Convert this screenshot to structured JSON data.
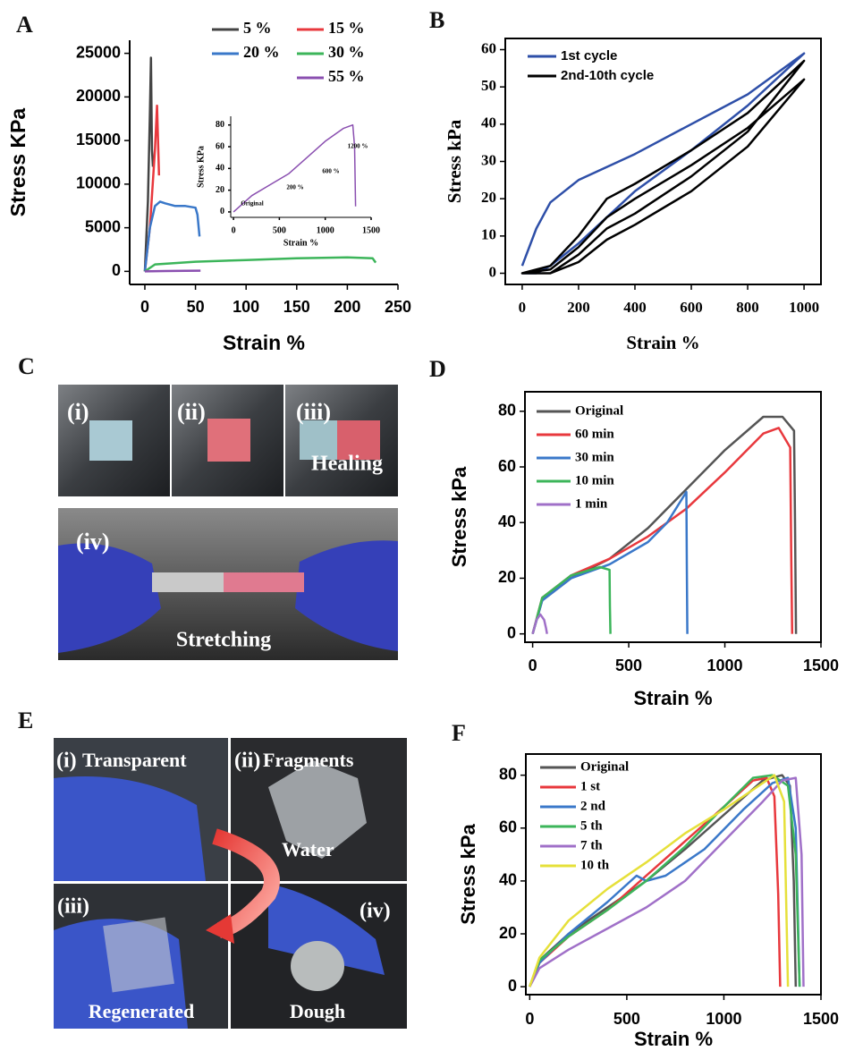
{
  "panel_labels": [
    "A",
    "B",
    "C",
    "D",
    "E",
    "F"
  ],
  "figure_c": {
    "labels": [
      "(i)",
      "(ii)",
      "(iii)",
      "Healing",
      "(iv)",
      "Stretching"
    ]
  },
  "figure_e": {
    "labels": [
      "(i)",
      "Transparent",
      "(ii)",
      "Fragments",
      "Water",
      "(iii)",
      "Regenerated",
      "(iv)",
      "Dough"
    ]
  },
  "chart_data": [
    {
      "type": "line",
      "x_label": "Strain %",
      "y_label": "Stress KPa",
      "xlim": [
        -15,
        250
      ],
      "xticks": [
        0,
        50,
        100,
        150,
        200,
        250
      ],
      "ylim": [
        -1500,
        26500
      ],
      "yticks": [
        0,
        5000,
        10000,
        15000,
        20000,
        25000
      ],
      "series": [
        {
          "name": "5 %",
          "color": "#444444",
          "x": [
            0,
            3,
            5,
            6,
            7,
            8
          ],
          "values": [
            0,
            8000,
            18000,
            24500,
            14000,
            12000
          ]
        },
        {
          "name": "15 %",
          "color": "#e8383d",
          "x": [
            0,
            5,
            10,
            12,
            13,
            14
          ],
          "values": [
            0,
            5000,
            14000,
            19000,
            15000,
            11000
          ]
        },
        {
          "name": "20 %",
          "color": "#3a78c9",
          "x": [
            0,
            5,
            10,
            15,
            20,
            30,
            40,
            50,
            52,
            54
          ],
          "values": [
            0,
            5000,
            7500,
            8000,
            7800,
            7500,
            7500,
            7300,
            6500,
            4000
          ]
        },
        {
          "name": "30 %",
          "color": "#3cb55a",
          "x": [
            0,
            10,
            50,
            100,
            150,
            200,
            225,
            228
          ],
          "values": [
            0,
            800,
            1100,
            1300,
            1500,
            1600,
            1500,
            1000
          ]
        },
        {
          "name": "55 %",
          "color": "#8a4fb0",
          "x": [
            0,
            20,
            40,
            55
          ],
          "values": [
            0,
            40,
            70,
            80
          ]
        }
      ]
    },
    {
      "type": "line",
      "x_label": "Strain %",
      "y_label": "Stress KPa",
      "xlim": [
        -30,
        1500
      ],
      "xticks": [
        0,
        500,
        1000,
        1500
      ],
      "ylim": [
        -5,
        88
      ],
      "yticks": [
        0,
        20,
        40,
        60,
        80
      ],
      "annotations": [
        "Original",
        "200 %",
        "600 %",
        "1200 %"
      ],
      "series": [
        {
          "color": "#8a4fb0",
          "x": [
            0,
            200,
            400,
            600,
            800,
            1000,
            1200,
            1300,
            1320,
            1330
          ],
          "values": [
            0,
            15,
            25,
            35,
            50,
            65,
            77,
            80,
            60,
            5
          ]
        }
      ]
    },
    {
      "type": "line",
      "x_label": "Strain %",
      "y_label": "Stress kPa",
      "xlim": [
        -60,
        1060
      ],
      "xticks": [
        0,
        200,
        400,
        600,
        800,
        1000
      ],
      "ylim": [
        -3,
        63
      ],
      "yticks": [
        0,
        10,
        20,
        30,
        40,
        50,
        60
      ],
      "series": [
        {
          "name": "1st cycle",
          "color": "#2e4fa8",
          "x": [
            0,
            50,
            100,
            200,
            400,
            600,
            800,
            1000,
            800,
            600,
            400,
            200,
            100,
            50,
            0
          ],
          "values": [
            2,
            12,
            19,
            25,
            32,
            40,
            48,
            59,
            45,
            33,
            22,
            8,
            2,
            0,
            0
          ]
        },
        {
          "name": "2nd-10th cycle",
          "color": "#000000",
          "x": [
            0,
            100,
            200,
            300,
            400,
            600,
            800,
            1000,
            800,
            600,
            400,
            300,
            200,
            100,
            0,
            100,
            200,
            300,
            400,
            600,
            800,
            1000,
            800,
            600,
            400,
            300,
            200,
            100,
            0
          ],
          "values": [
            0,
            2,
            10,
            20,
            24,
            33,
            43,
            57,
            38,
            26,
            16,
            12,
            5,
            0,
            0,
            1,
            7,
            15,
            20,
            29,
            39,
            52,
            34,
            22,
            13,
            9,
            3,
            0,
            0
          ]
        }
      ]
    },
    {
      "type": "line",
      "x_label": "Strain %",
      "y_label": "Stress kPa",
      "xlim": [
        -40,
        1500
      ],
      "xticks": [
        0,
        500,
        1000,
        1500
      ],
      "ylim": [
        -3,
        87
      ],
      "yticks": [
        0,
        20,
        40,
        60,
        80
      ],
      "series": [
        {
          "name": "Original",
          "color": "#555555",
          "x": [
            0,
            50,
            200,
            400,
            600,
            800,
            1000,
            1200,
            1300,
            1360,
            1365,
            1370
          ],
          "values": [
            0,
            12,
            20,
            27,
            38,
            52,
            66,
            78,
            78,
            73,
            40,
            0
          ]
        },
        {
          "name": "60 min",
          "color": "#e8383d",
          "x": [
            0,
            50,
            200,
            400,
            600,
            800,
            1000,
            1200,
            1280,
            1340,
            1345,
            1350
          ],
          "values": [
            0,
            13,
            21,
            27,
            35,
            45,
            58,
            72,
            74,
            67,
            30,
            0
          ]
        },
        {
          "name": "30 min",
          "color": "#3a78c9",
          "x": [
            0,
            50,
            200,
            400,
            600,
            700,
            800,
            802,
            805
          ],
          "values": [
            0,
            12,
            20,
            25,
            33,
            40,
            51,
            25,
            0
          ]
        },
        {
          "name": "10 min",
          "color": "#3cb55a",
          "x": [
            0,
            50,
            200,
            350,
            400,
            402,
            405
          ],
          "values": [
            0,
            13,
            21,
            24,
            23,
            10,
            0
          ]
        },
        {
          "name": "1 min",
          "color": "#a070c8",
          "x": [
            0,
            20,
            40,
            60,
            70,
            75
          ],
          "values": [
            0,
            5,
            7,
            5,
            2,
            0
          ]
        }
      ]
    },
    {
      "type": "line",
      "x_label": "Strain %",
      "y_label": "Stress kPa",
      "xlim": [
        -20,
        1500
      ],
      "xticks": [
        0,
        500,
        1000,
        1500
      ],
      "ylim": [
        -3,
        88
      ],
      "yticks": [
        0,
        20,
        40,
        60,
        80
      ],
      "series": [
        {
          "name": "Original",
          "color": "#555555",
          "x": [
            0,
            50,
            200,
            400,
            600,
            800,
            1000,
            1200,
            1300,
            1340,
            1360,
            1370
          ],
          "values": [
            0,
            10,
            20,
            30,
            40,
            52,
            65,
            78,
            80,
            76,
            40,
            0
          ]
        },
        {
          "name": "1 st",
          "color": "#e8383d",
          "x": [
            0,
            50,
            200,
            400,
            600,
            800,
            1000,
            1150,
            1220,
            1260,
            1280,
            1290
          ],
          "values": [
            0,
            9,
            19,
            29,
            42,
            55,
            68,
            78,
            79,
            72,
            35,
            0
          ]
        },
        {
          "name": "2 nd",
          "color": "#3a78c9",
          "x": [
            0,
            50,
            200,
            400,
            550,
            600,
            700,
            900,
            1100,
            1250,
            1330,
            1370,
            1390
          ],
          "values": [
            0,
            9,
            20,
            32,
            42,
            40,
            42,
            52,
            67,
            77,
            79,
            60,
            0
          ]
        },
        {
          "name": "5 th",
          "color": "#3cb55a",
          "x": [
            0,
            50,
            200,
            400,
            600,
            800,
            1000,
            1150,
            1250,
            1330,
            1370,
            1390
          ],
          "values": [
            0,
            10,
            19,
            29,
            40,
            53,
            68,
            79,
            80,
            76,
            50,
            0
          ]
        },
        {
          "name": "7 th",
          "color": "#a070c8",
          "x": [
            0,
            50,
            200,
            400,
            600,
            800,
            1000,
            1200,
            1300,
            1370,
            1400,
            1410
          ],
          "values": [
            0,
            7,
            14,
            22,
            30,
            40,
            55,
            70,
            78,
            79,
            50,
            0
          ]
        },
        {
          "name": "10 th",
          "color": "#e6e03a",
          "x": [
            0,
            50,
            200,
            400,
            600,
            800,
            1000,
            1200,
            1260,
            1310,
            1330
          ],
          "values": [
            0,
            11,
            25,
            37,
            47,
            58,
            67,
            77,
            80,
            70,
            0
          ]
        }
      ]
    }
  ]
}
